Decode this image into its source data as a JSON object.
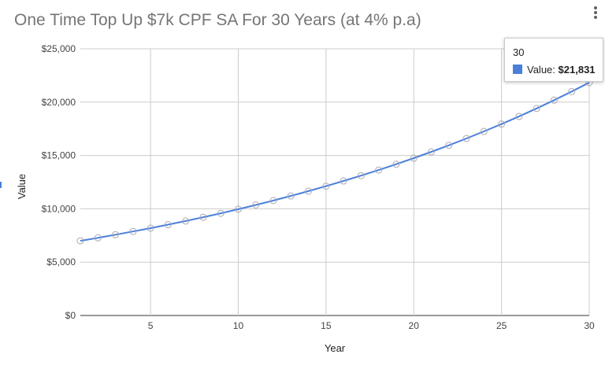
{
  "chart_data": {
    "type": "line",
    "title": "One Time Top Up $7k CPF SA For 30 Years (at 4% p.a)",
    "xlabel": "Year",
    "ylabel": "Value",
    "xlim": [
      1,
      30
    ],
    "ylim": [
      0,
      25000
    ],
    "x_ticks": [
      5,
      10,
      15,
      20,
      25,
      30
    ],
    "y_ticks": [
      0,
      5000,
      10000,
      15000,
      20000,
      25000
    ],
    "y_tick_labels": [
      "$0",
      "$5,000",
      "$10,000",
      "$15,000",
      "$20,000",
      "$25,000"
    ],
    "grid": true,
    "legend": "none",
    "series": [
      {
        "name": "Value",
        "color": "#4a7fdb",
        "markers": "hollow-circle",
        "x": [
          1,
          2,
          3,
          4,
          5,
          6,
          7,
          8,
          9,
          10,
          11,
          12,
          13,
          14,
          15,
          16,
          17,
          18,
          19,
          20,
          21,
          22,
          23,
          24,
          25,
          26,
          27,
          28,
          29,
          30
        ],
        "values": [
          7000,
          7280,
          7571,
          7874,
          8189,
          8517,
          8857,
          9212,
          9580,
          9963,
          10362,
          10776,
          11207,
          11656,
          12122,
          12607,
          13111,
          13636,
          14181,
          14748,
          15338,
          15952,
          16590,
          17254,
          17944,
          18662,
          19408,
          20184,
          20992,
          21831
        ]
      }
    ],
    "tooltip": {
      "x": "30",
      "label": "Value:",
      "value": "$21,831"
    }
  },
  "ui": {
    "menu_icon": "more-vert-icon"
  }
}
